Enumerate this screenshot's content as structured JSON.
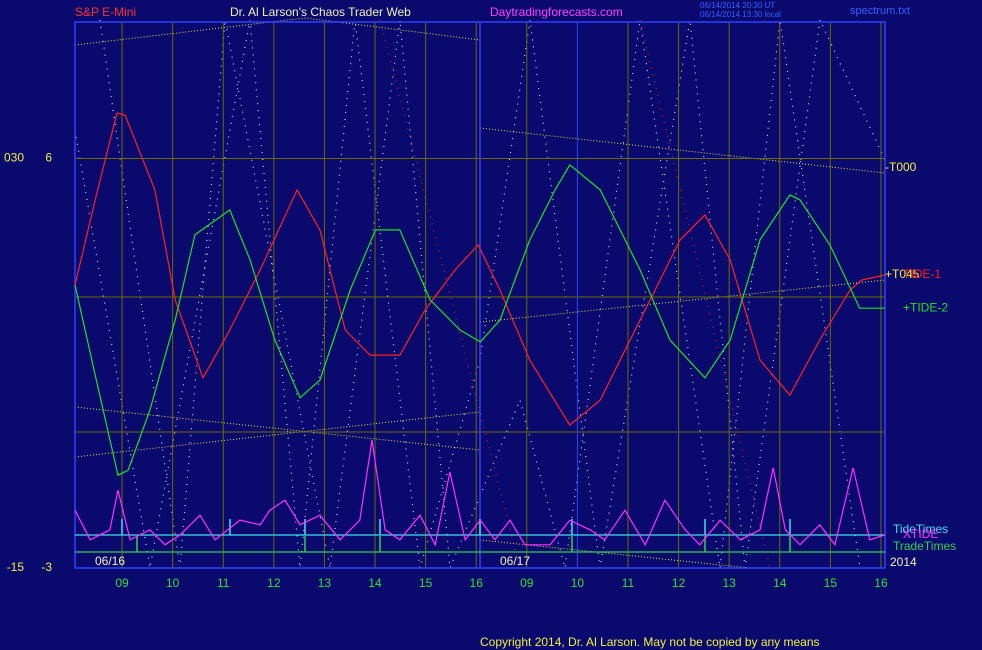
{
  "chart_data": {
    "type": "line",
    "symbol": "S&P E-Mini",
    "title": "Dr. Al Larson's Chaos Trader Web",
    "site": "Daytradingforecasts.com",
    "timestamps": [
      "06/14/2014 20:30 UT",
      "06/14/2014 13:30 local"
    ],
    "file": "spectrum.txt",
    "copyright": "Copyright 2014, Dr. Al Larson. May not be copied by any means",
    "dates": [
      "06/16",
      "06/17"
    ],
    "year": "2014",
    "annotations": [
      "-T000",
      "+T045"
    ],
    "markers": [
      {
        "name": "TideTimes",
        "color": "#40e0f0"
      },
      {
        "name": "TradeTimes",
        "color": "#30d050"
      }
    ],
    "xlim": [
      0.07,
      16.08
    ],
    "xticks": [
      {
        "value": 1,
        "label": "09"
      },
      {
        "value": 2,
        "label": "10"
      },
      {
        "value": 3,
        "label": "11"
      },
      {
        "value": 4,
        "label": "12"
      },
      {
        "value": 5,
        "label": "13"
      },
      {
        "value": 6,
        "label": "14"
      },
      {
        "value": 7,
        "label": "15"
      },
      {
        "value": 8,
        "label": "16"
      },
      {
        "value": 9,
        "label": "09"
      },
      {
        "value": 10,
        "label": "10"
      },
      {
        "value": 11,
        "label": "11"
      },
      {
        "value": 12,
        "label": "12"
      },
      {
        "value": 13,
        "label": "13"
      },
      {
        "value": 14,
        "label": "14"
      },
      {
        "value": 15,
        "label": "15"
      },
      {
        "value": 16,
        "label": "16"
      }
    ],
    "ylim": [
      -3,
      9
    ],
    "yticks": [
      6,
      -3
    ],
    "y2lim": [
      -15,
      45
    ],
    "y2ticks": [
      {
        "value": 30,
        "label": "030"
      },
      -15
    ],
    "grid": true,
    "series": [
      {
        "name": "TIDE-1",
        "color": "#ff2020",
        "x": [
          0.07,
          0.47,
          0.9,
          1.06,
          1.65,
          2.05,
          2.6,
          3.13,
          3.73,
          4.46,
          4.91,
          5.41,
          5.9,
          6.49,
          6.99,
          7.58,
          8.04,
          8.47,
          9.06,
          9.85,
          10.45,
          11.24,
          12.03,
          12.52,
          13.02,
          13.61,
          14.2,
          14.79,
          15.39,
          15.62,
          16.08
        ],
        "values": [
          3.22,
          5.09,
          7.0,
          6.95,
          5.31,
          2.89,
          1.18,
          2.23,
          3.55,
          5.31,
          4.43,
          2.23,
          1.68,
          1.68,
          2.67,
          3.55,
          4.1,
          3.11,
          1.57,
          0.14,
          0.69,
          2.45,
          4.21,
          4.76,
          3.77,
          1.57,
          0.8,
          2.01,
          3.11,
          3.33,
          3.44
        ]
      },
      {
        "name": "+TIDE-2",
        "color": "#20e020",
        "x": [
          0.07,
          0.47,
          0.92,
          1.12,
          1.55,
          2.05,
          2.44,
          3.13,
          3.53,
          4.02,
          4.52,
          4.91,
          5.51,
          6.01,
          6.49,
          7.09,
          7.68,
          8.08,
          8.47,
          9.06,
          9.56,
          9.85,
          10.45,
          11.24,
          11.83,
          12.52,
          13.02,
          13.61,
          14.2,
          14.4,
          14.99,
          15.58,
          16.08
        ],
        "values": [
          3.22,
          1.24,
          -0.96,
          -0.85,
          0.47,
          2.45,
          4.32,
          4.87,
          3.77,
          2.01,
          0.74,
          1.13,
          3.11,
          4.43,
          4.43,
          2.89,
          2.23,
          1.97,
          2.45,
          4.21,
          5.31,
          5.86,
          5.31,
          3.55,
          2.01,
          1.18,
          2.01,
          4.21,
          5.2,
          5.09,
          4.1,
          2.71,
          2.71
        ]
      },
      {
        "name": "XTIDE",
        "color": "#ff30ff",
        "x": [
          0.07,
          0.37,
          0.76,
          0.92,
          1.16,
          1.55,
          1.85,
          2.15,
          2.54,
          2.84,
          3.33,
          3.73,
          3.92,
          4.22,
          4.52,
          4.91,
          5.31,
          5.7,
          5.94,
          6.2,
          6.49,
          6.89,
          7.19,
          7.48,
          7.78,
          8.08,
          8.37,
          8.67,
          8.96,
          9.46,
          9.85,
          10.25,
          10.54,
          10.94,
          11.34,
          11.73,
          12.13,
          12.42,
          12.82,
          13.22,
          13.61,
          13.87,
          14.11,
          14.4,
          14.79,
          15.09,
          15.45,
          15.78,
          16.08
        ],
        "values": [
          -1.73,
          -2.38,
          -2.16,
          -1.29,
          -2.38,
          -2.16,
          -2.49,
          -2.27,
          -1.84,
          -2.38,
          -1.95,
          -2.05,
          -1.73,
          -1.51,
          -2.05,
          -1.84,
          -2.38,
          -1.95,
          -0.19,
          -2.16,
          -2.38,
          -1.84,
          -2.49,
          -0.89,
          -2.38,
          -1.95,
          -2.38,
          -1.95,
          -2.49,
          -2.49,
          -1.95,
          -2.16,
          -2.38,
          -1.73,
          -2.49,
          -1.51,
          -2.16,
          -2.49,
          -1.95,
          -2.38,
          -2.16,
          -0.8,
          -2.16,
          -2.49,
          -2.05,
          -2.49,
          -0.8,
          -2.38,
          -2.27
        ]
      }
    ]
  }
}
